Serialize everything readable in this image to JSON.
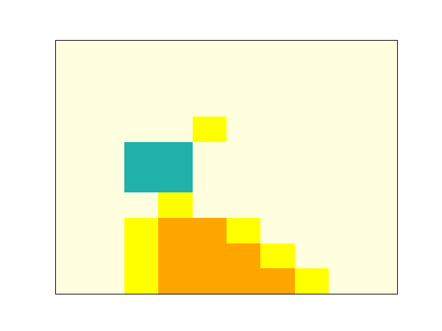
{
  "grid": {
    "columns": 10,
    "rows": 10,
    "legend": {
      "0": "background",
      "1": "yellow",
      "2": "orange",
      "3": "teal"
    },
    "palette": {
      "background": "#ffffe0",
      "yellow": "#ffff00",
      "orange": "#ffa500",
      "teal": "#20b2aa"
    },
    "cells": [
      [
        0,
        0,
        0,
        0,
        0,
        0,
        0,
        0,
        0,
        0
      ],
      [
        0,
        0,
        0,
        0,
        0,
        0,
        0,
        0,
        0,
        0
      ],
      [
        0,
        0,
        0,
        0,
        0,
        0,
        0,
        0,
        0,
        0
      ],
      [
        0,
        0,
        0,
        0,
        1,
        0,
        0,
        0,
        0,
        0
      ],
      [
        0,
        0,
        3,
        3,
        0,
        0,
        0,
        0,
        0,
        0
      ],
      [
        0,
        0,
        3,
        3,
        0,
        0,
        0,
        0,
        0,
        0
      ],
      [
        0,
        0,
        0,
        1,
        0,
        0,
        0,
        0,
        0,
        0
      ],
      [
        0,
        0,
        1,
        2,
        2,
        1,
        0,
        0,
        0,
        0
      ],
      [
        0,
        0,
        1,
        2,
        2,
        2,
        1,
        0,
        0,
        0
      ],
      [
        0,
        0,
        1,
        2,
        2,
        2,
        2,
        1,
        0,
        0
      ]
    ]
  }
}
